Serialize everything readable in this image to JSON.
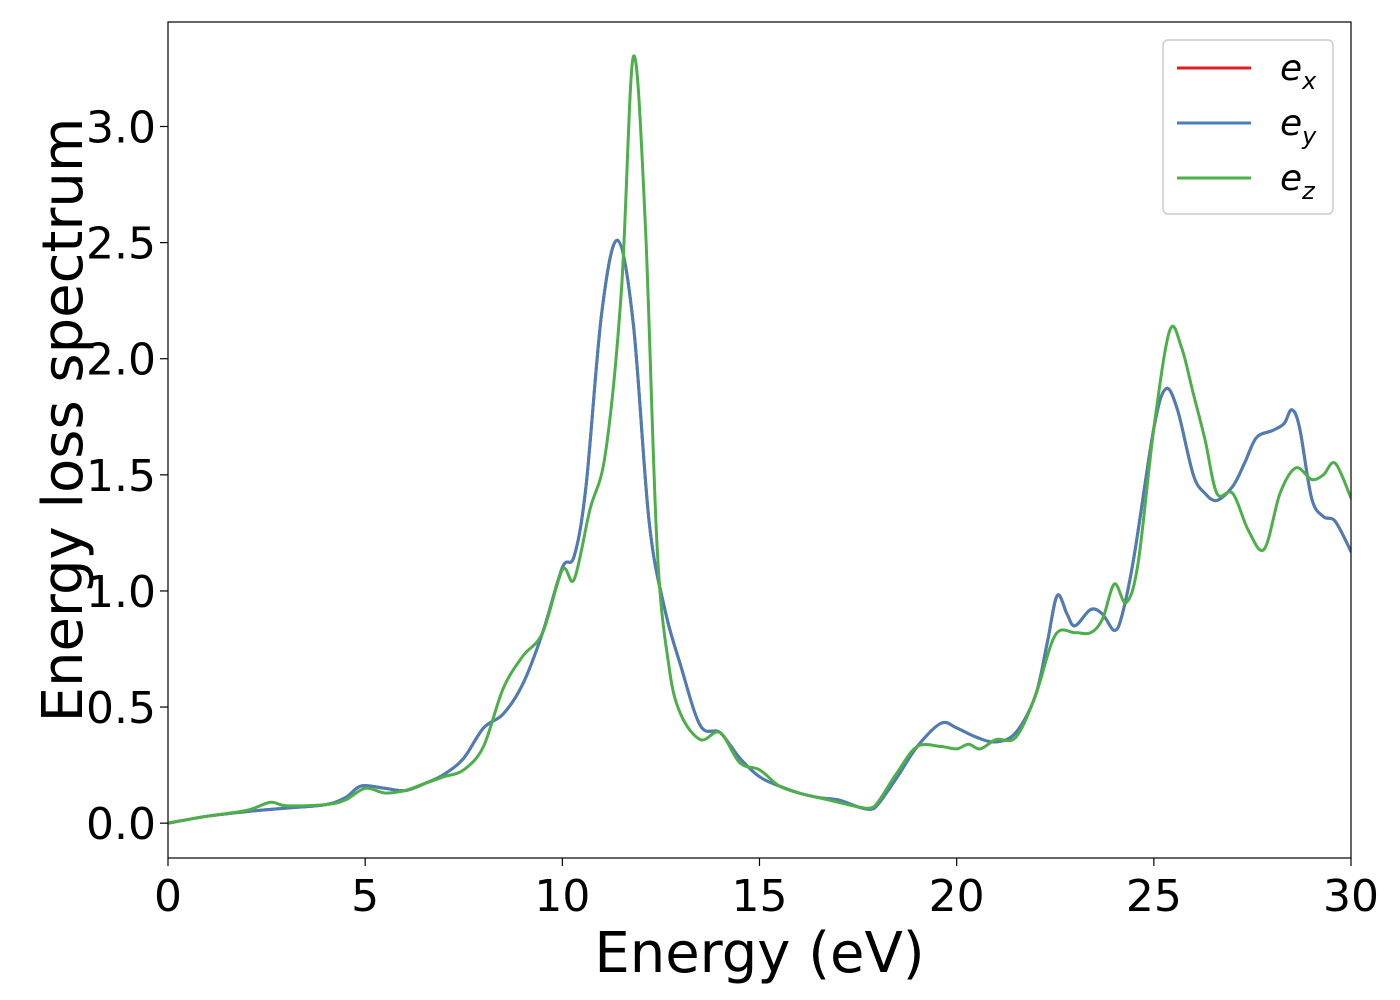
{
  "chart_data": {
    "type": "line",
    "title": "",
    "xlabel": "Energy (eV)",
    "ylabel": "Energy loss spectrum",
    "xlim": [
      0,
      30
    ],
    "ylim": [
      -0.15,
      3.45
    ],
    "xticks": [
      0,
      5,
      10,
      15,
      20,
      25,
      30
    ],
    "xtick_labels": [
      "0",
      "5",
      "10",
      "15",
      "20",
      "25",
      "30"
    ],
    "yticks": [
      0.0,
      0.5,
      1.0,
      1.5,
      2.0,
      2.5,
      3.0
    ],
    "ytick_labels": [
      "0.0",
      "0.5",
      "1.0",
      "1.5",
      "2.0",
      "2.5",
      "3.0"
    ],
    "grid": false,
    "legend_position": "top-right",
    "series": [
      {
        "name": "e_x",
        "label_main": "e",
        "label_sub": "x",
        "color": "#e41a1c",
        "x": [
          0,
          1,
          2,
          3,
          4,
          4.5,
          4.9,
          5.5,
          6,
          6.5,
          7,
          7.5,
          8,
          8.5,
          9,
          9.5,
          10,
          10.3,
          10.6,
          11,
          11.4,
          11.8,
          12.2,
          12.6,
          13,
          13.5,
          14,
          14.5,
          15,
          15.5,
          16,
          16.5,
          17,
          17.5,
          17.8,
          18,
          18.5,
          19,
          19.6,
          20,
          20.5,
          21,
          21.5,
          22,
          22.3,
          22.55,
          22.8,
          23,
          23.4,
          23.7,
          24,
          24.2,
          24.5,
          25,
          25.3,
          25.6,
          26,
          26.3,
          26.6,
          27,
          27.3,
          27.6,
          28,
          28.3,
          28.5,
          28.7,
          29,
          29.3,
          29.6,
          30
        ],
        "y": [
          0.0,
          0.03,
          0.05,
          0.065,
          0.08,
          0.11,
          0.16,
          0.15,
          0.14,
          0.17,
          0.21,
          0.28,
          0.41,
          0.47,
          0.6,
          0.82,
          1.1,
          1.15,
          1.45,
          2.2,
          2.51,
          2.15,
          1.3,
          0.92,
          0.68,
          0.42,
          0.39,
          0.28,
          0.2,
          0.16,
          0.13,
          0.11,
          0.1,
          0.07,
          0.06,
          0.08,
          0.2,
          0.33,
          0.43,
          0.41,
          0.37,
          0.35,
          0.39,
          0.55,
          0.78,
          0.98,
          0.9,
          0.85,
          0.92,
          0.9,
          0.83,
          0.9,
          1.15,
          1.7,
          1.87,
          1.78,
          1.5,
          1.42,
          1.39,
          1.45,
          1.55,
          1.66,
          1.69,
          1.72,
          1.78,
          1.7,
          1.4,
          1.32,
          1.3,
          1.17
        ]
      },
      {
        "name": "e_y",
        "label_main": "e",
        "label_sub": "y",
        "color": "#4a7fb5",
        "x": [
          0,
          1,
          2,
          3,
          4,
          4.5,
          4.9,
          5.5,
          6,
          6.5,
          7,
          7.5,
          8,
          8.5,
          9,
          9.5,
          10,
          10.3,
          10.6,
          11,
          11.4,
          11.8,
          12.2,
          12.6,
          13,
          13.5,
          14,
          14.5,
          15,
          15.5,
          16,
          16.5,
          17,
          17.5,
          17.8,
          18,
          18.5,
          19,
          19.6,
          20,
          20.5,
          21,
          21.5,
          22,
          22.3,
          22.55,
          22.8,
          23,
          23.4,
          23.7,
          24,
          24.2,
          24.5,
          25,
          25.3,
          25.6,
          26,
          26.3,
          26.6,
          27,
          27.3,
          27.6,
          28,
          28.3,
          28.5,
          28.7,
          29,
          29.3,
          29.6,
          30
        ],
        "y": [
          0.0,
          0.03,
          0.05,
          0.065,
          0.08,
          0.11,
          0.16,
          0.15,
          0.14,
          0.17,
          0.21,
          0.28,
          0.41,
          0.47,
          0.6,
          0.82,
          1.1,
          1.15,
          1.45,
          2.2,
          2.51,
          2.15,
          1.3,
          0.92,
          0.68,
          0.42,
          0.39,
          0.28,
          0.2,
          0.16,
          0.13,
          0.11,
          0.1,
          0.07,
          0.06,
          0.08,
          0.2,
          0.33,
          0.43,
          0.41,
          0.37,
          0.35,
          0.39,
          0.55,
          0.78,
          0.98,
          0.9,
          0.85,
          0.92,
          0.9,
          0.83,
          0.9,
          1.15,
          1.7,
          1.87,
          1.78,
          1.5,
          1.42,
          1.39,
          1.45,
          1.55,
          1.66,
          1.69,
          1.72,
          1.78,
          1.7,
          1.4,
          1.32,
          1.3,
          1.17
        ]
      },
      {
        "name": "e_z",
        "label_main": "e",
        "label_sub": "z",
        "color": "#4daf4a",
        "x": [
          0,
          1,
          2,
          2.6,
          3,
          4,
          4.5,
          5,
          5.5,
          6,
          6.5,
          7,
          7.5,
          8,
          8.5,
          9,
          9.5,
          10,
          10.3,
          10.7,
          11.1,
          11.5,
          11.8,
          12.1,
          12.4,
          12.7,
          13,
          13.5,
          14,
          14.5,
          15,
          15.5,
          16,
          16.5,
          17,
          17.5,
          17.8,
          18,
          18.5,
          19,
          19.6,
          20,
          20.3,
          20.6,
          21,
          21.5,
          22,
          22.5,
          23,
          23.4,
          23.7,
          24,
          24.3,
          24.6,
          25,
          25.4,
          25.7,
          26,
          26.3,
          26.6,
          27,
          27.4,
          27.8,
          28.2,
          28.6,
          29,
          29.3,
          29.6,
          30
        ],
        "y": [
          0.0,
          0.03,
          0.055,
          0.09,
          0.075,
          0.08,
          0.1,
          0.15,
          0.13,
          0.14,
          0.17,
          0.2,
          0.23,
          0.33,
          0.58,
          0.72,
          0.82,
          1.09,
          1.05,
          1.35,
          1.6,
          2.3,
          3.3,
          2.6,
          1.2,
          0.68,
          0.47,
          0.36,
          0.39,
          0.26,
          0.23,
          0.16,
          0.13,
          0.11,
          0.09,
          0.07,
          0.065,
          0.09,
          0.22,
          0.33,
          0.33,
          0.32,
          0.34,
          0.32,
          0.36,
          0.37,
          0.55,
          0.81,
          0.82,
          0.82,
          0.88,
          1.03,
          0.95,
          1.12,
          1.7,
          2.12,
          2.05,
          1.85,
          1.65,
          1.42,
          1.42,
          1.26,
          1.18,
          1.42,
          1.53,
          1.48,
          1.5,
          1.55,
          1.4
        ]
      }
    ]
  }
}
